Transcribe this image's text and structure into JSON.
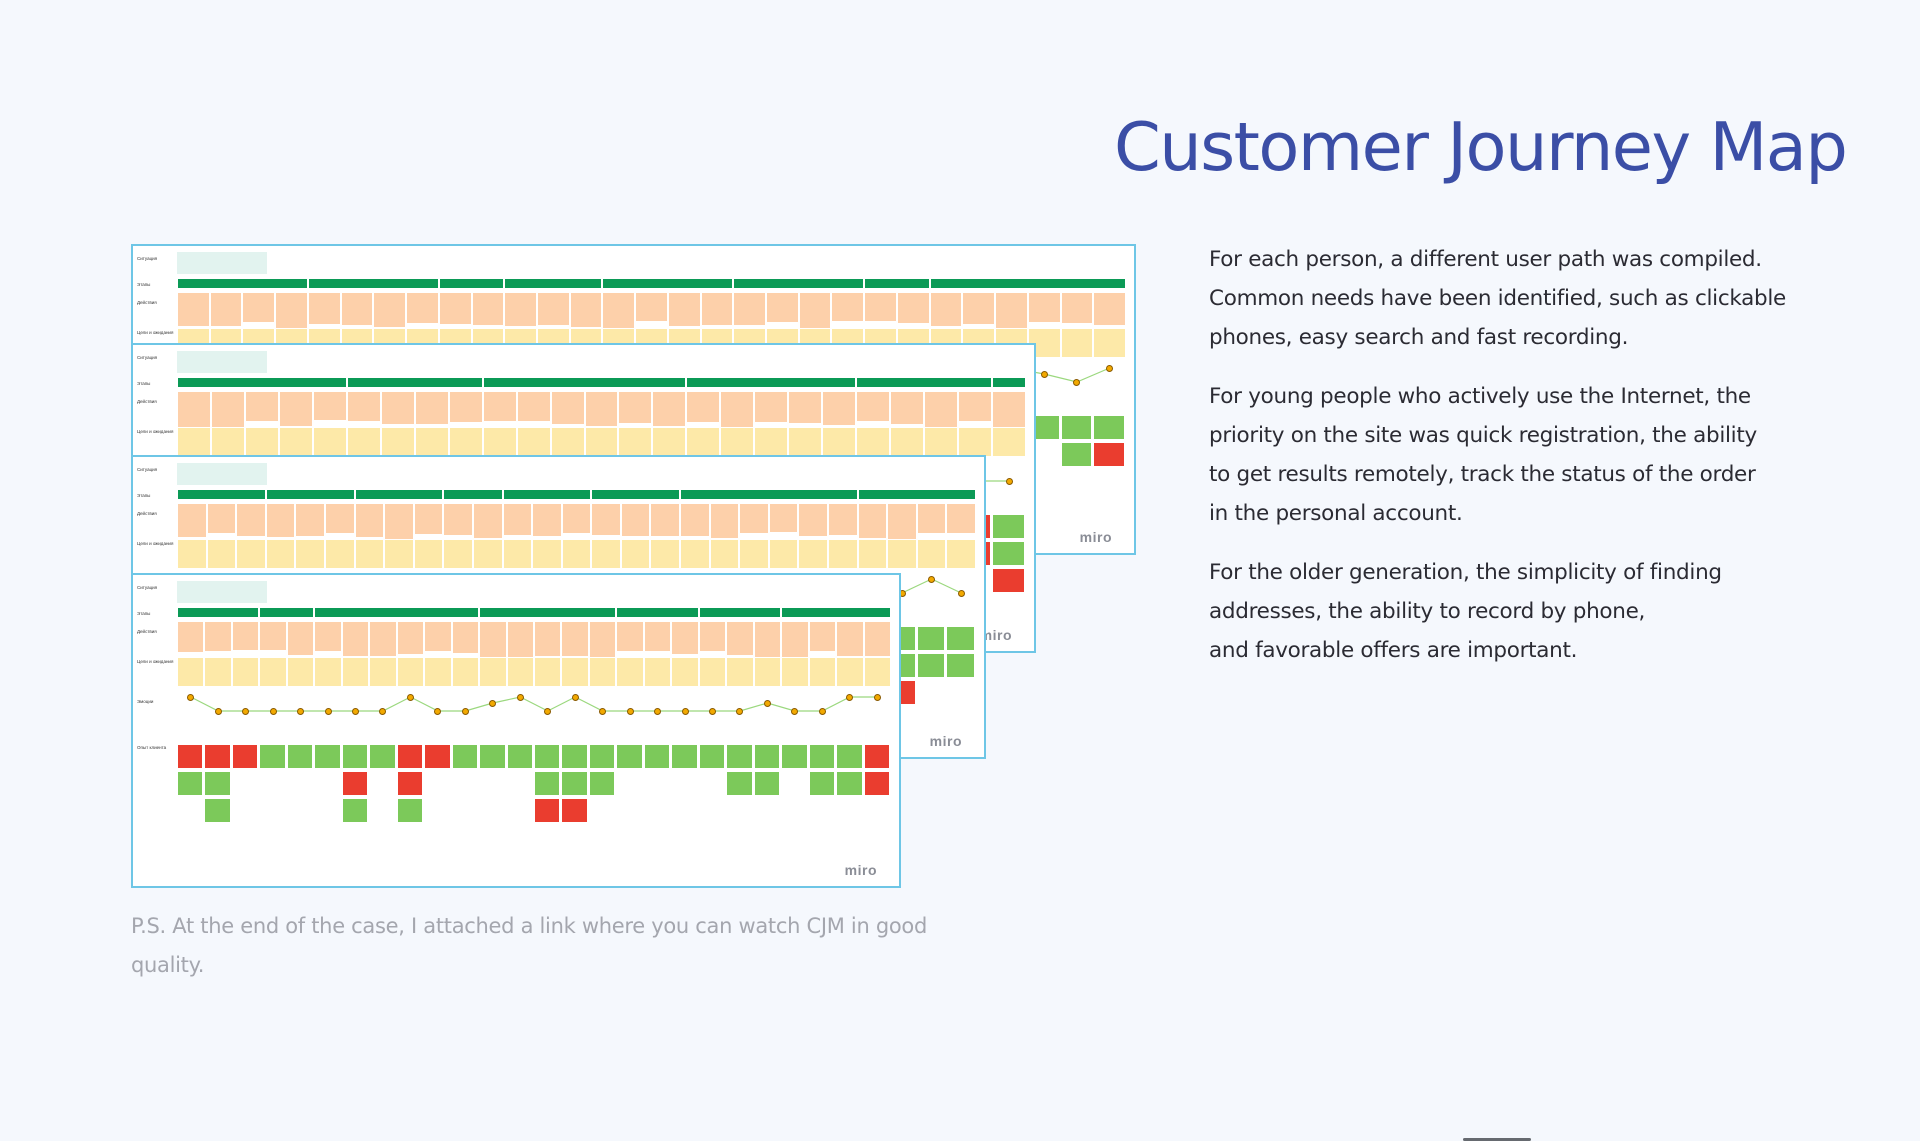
{
  "header": {
    "title": "Customer Journey Map"
  },
  "description": {
    "paragraphs": [
      "For each person, a different user path was compiled.\nCommon needs have been identified, such as clickable\nphones, easy search and fast recording.",
      "For young people who actively use the Internet, the\npriority on the site was quick registration, the ability\nto get results remotely, track the status of the order\nin the personal account.",
      "For the older generation, the simplicity of finding\naddresses, the ability to record by phone,\nand favorable offers are important."
    ]
  },
  "footnote": "P.S. At the end of the case, I attached a link where you can watch CJM in good quality.",
  "boards": {
    "row_labels": [
      "Ситуация",
      "Этапы",
      "Действия",
      "Цели и ожидания",
      "Эмоции",
      "Опыт клиента"
    ],
    "watermark": "miro",
    "colors": {
      "stage": "#0b9a56",
      "action": "#fdd0aa",
      "goal": "#fde9a8",
      "positive": "#7cc95a",
      "negative": "#ea3d2f",
      "frame_border": "#6ec6e6"
    }
  }
}
